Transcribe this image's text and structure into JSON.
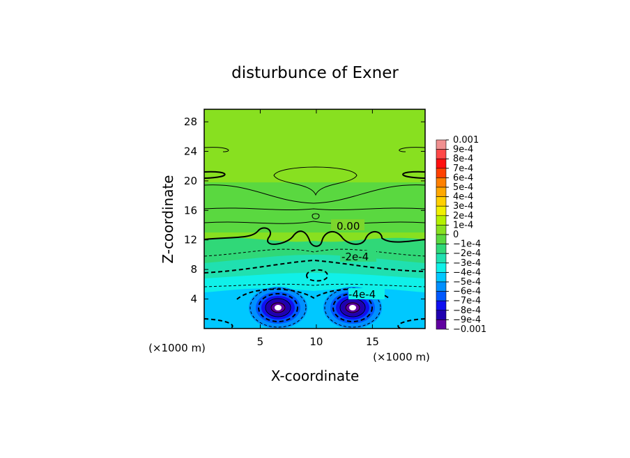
{
  "chart_data": {
    "type": "contour",
    "title": "disturbunce of Exner",
    "xlabel": "X-coordinate",
    "ylabel": "Z-coordinate",
    "x_unit": "(×1000 m)",
    "y_unit": "(×1000 m)",
    "xlim": [
      0,
      19.7
    ],
    "ylim": [
      0,
      29.7
    ],
    "xticks": [
      5,
      10,
      15
    ],
    "yticks": [
      4,
      8,
      12,
      16,
      20,
      24,
      28
    ],
    "contour_labels": [
      "0.00",
      "-2e-4",
      "-4e-4"
    ],
    "colorbar": {
      "ticks": [
        {
          "value": 0.001,
          "label": "0.001"
        },
        {
          "value": 0.0009,
          "label": "9e-4"
        },
        {
          "value": 0.0008,
          "label": "8e-4"
        },
        {
          "value": 0.0007,
          "label": "7e-4"
        },
        {
          "value": 0.0006,
          "label": "6e-4"
        },
        {
          "value": 0.0005,
          "label": "5e-4"
        },
        {
          "value": 0.0004,
          "label": "4e-4"
        },
        {
          "value": 0.0003,
          "label": "3e-4"
        },
        {
          "value": 0.0002,
          "label": "2e-4"
        },
        {
          "value": 0.0001,
          "label": "1e-4"
        },
        0,
        {
          "value": -0.0001,
          "label": "−1e-4"
        },
        {
          "value": -0.0002,
          "label": "−2e-4"
        },
        {
          "value": -0.0003,
          "label": "−3e-4"
        },
        {
          "value": -0.0004,
          "label": "−4e-4"
        },
        {
          "value": -0.0005,
          "label": "−5e-4"
        },
        {
          "value": -0.0006,
          "label": "−6e-4"
        },
        {
          "value": -0.0007,
          "label": "−7e-4"
        },
        {
          "value": -0.0008,
          "label": "−8e-4"
        },
        {
          "value": -0.0009,
          "label": "−9e-4"
        },
        {
          "value": -0.001,
          "label": "−0.001"
        }
      ],
      "colors": [
        "#f09090",
        "#ff4848",
        "#ff1010",
        "#ff4000",
        "#ff8000",
        "#ffa800",
        "#ffd000",
        "#f0f000",
        "#b4f000",
        "#88e020",
        "#5ad840",
        "#30d878",
        "#20e0b0",
        "#10f0e8",
        "#00c8ff",
        "#0090ff",
        "#0058ff",
        "#1010f0",
        "#2000b0",
        "#6000a0"
      ]
    }
  }
}
